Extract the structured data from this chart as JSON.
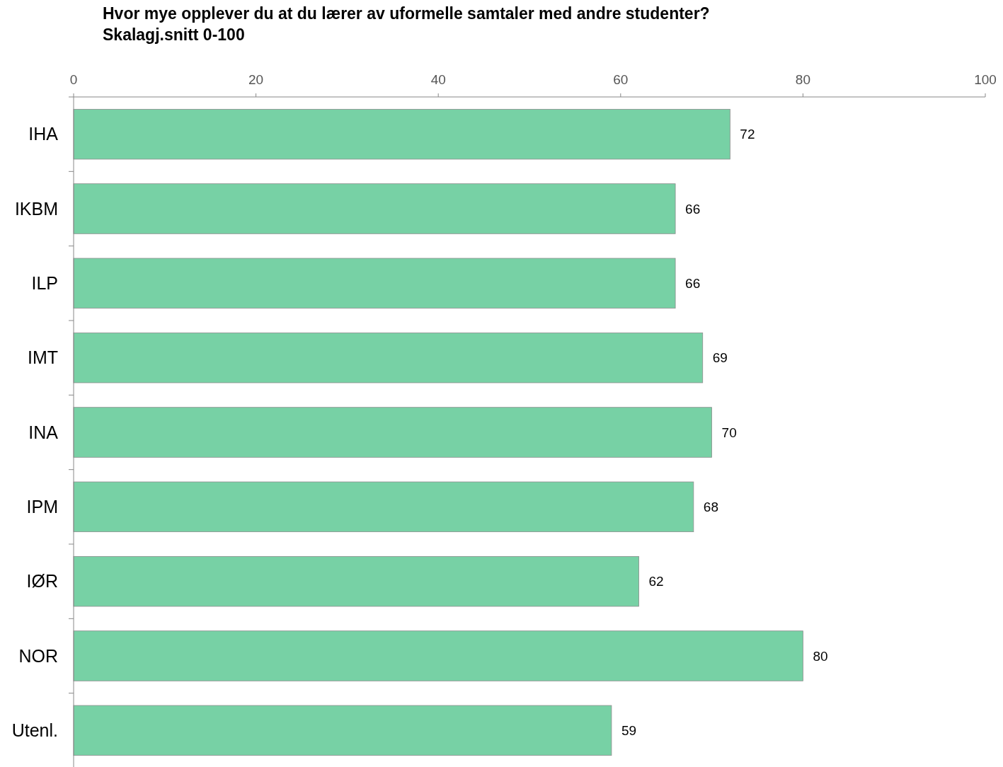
{
  "chart_data": {
    "type": "bar",
    "orientation": "horizontal",
    "title": "Hvor mye opplever du at du lærer av uformelle samtaler med andre studenter?",
    "subtitle": "Skalagj.snitt 0-100",
    "categories": [
      "IHA",
      "IKBM",
      "ILP",
      "IMT",
      "INA",
      "IPM",
      "IØR",
      "NOR",
      "Utenl."
    ],
    "values": [
      72,
      66,
      66,
      69,
      70,
      68,
      62,
      80,
      59
    ],
    "color": "#77d1a5",
    "xlim": [
      0,
      100
    ],
    "xticks": [
      0,
      20,
      40,
      60,
      80,
      100
    ],
    "grid": false,
    "data_labels": true
  }
}
